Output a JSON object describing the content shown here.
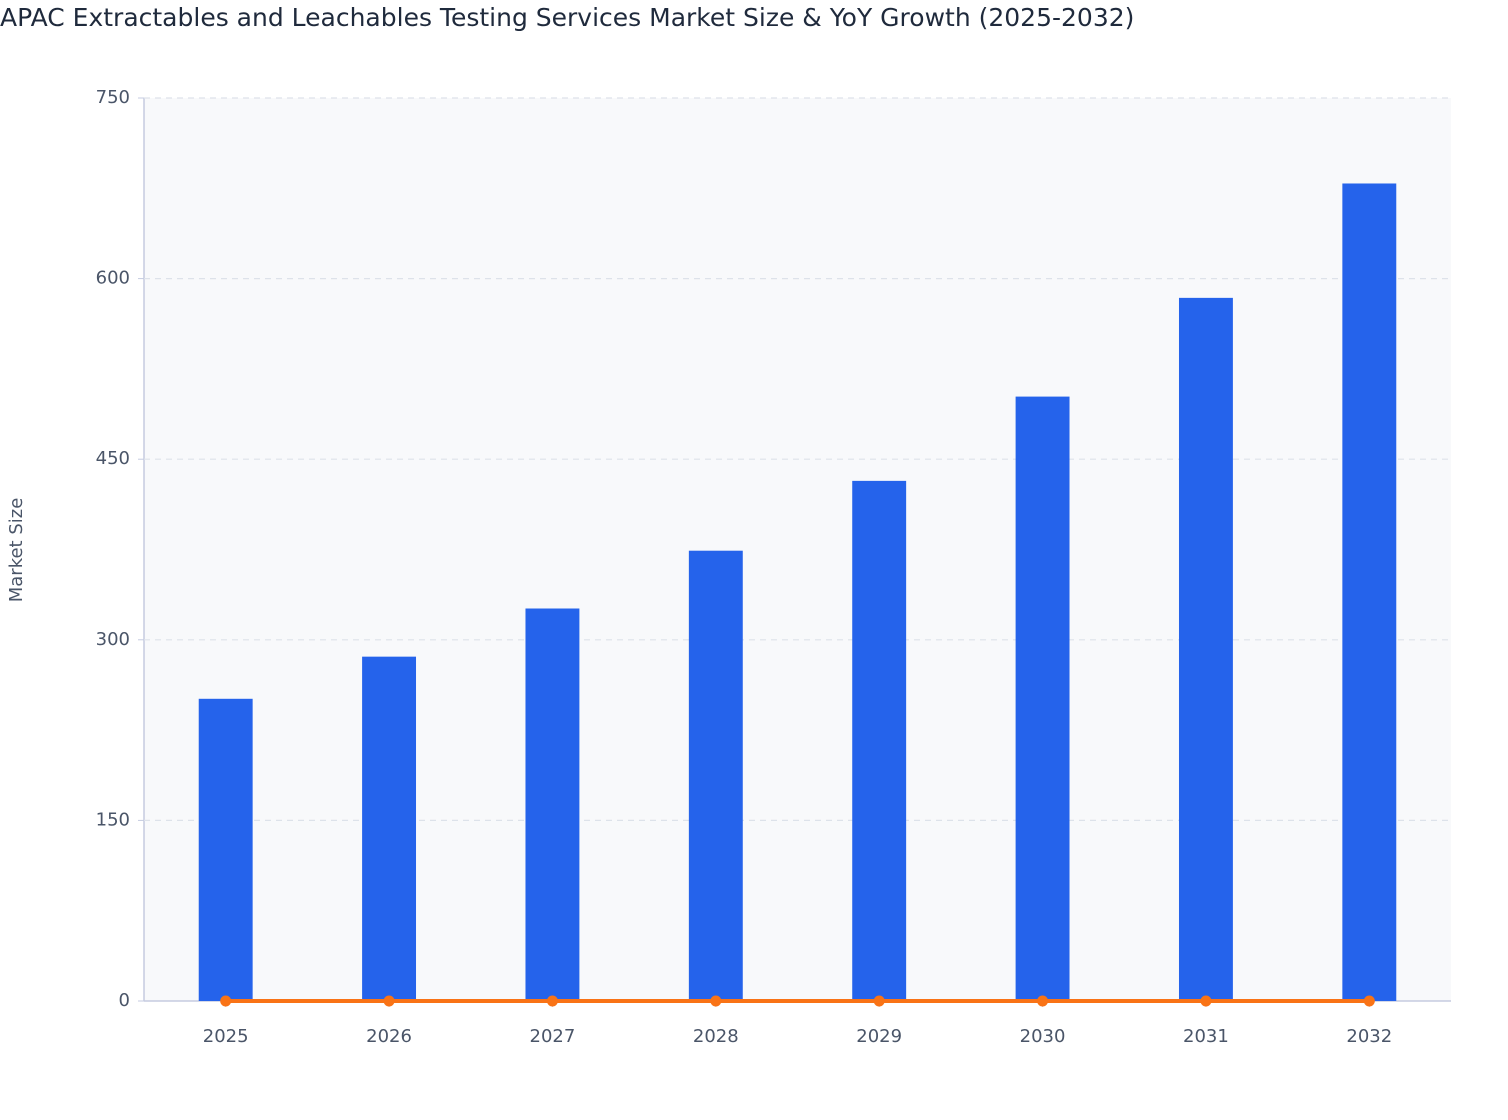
{
  "chart_data": {
    "type": "bar",
    "title": "APAC Extractables and Leachables Testing Services Market Size & YoY Growth (2025-2032)",
    "y_label": "Market Size",
    "categories": [
      "2025",
      "2026",
      "2027",
      "2028",
      "2029",
      "2030",
      "2031",
      "2032"
    ],
    "series": [
      {
        "type": "bar",
        "color": "#2563eb",
        "values": [
          251,
          286,
          326,
          374,
          432,
          502,
          584,
          679
        ]
      },
      {
        "type": "line",
        "color": "#f97316",
        "values": [
          0,
          0,
          0,
          0,
          0,
          0,
          0,
          0
        ]
      }
    ],
    "ylim": [
      0,
      750
    ],
    "yticks": [
      0,
      150,
      300,
      450,
      600,
      750
    ],
    "grid": true
  }
}
